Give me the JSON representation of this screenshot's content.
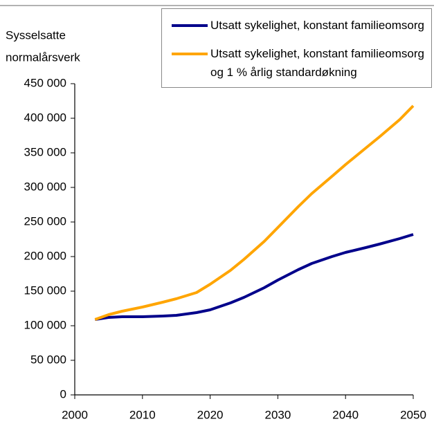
{
  "chart_data": {
    "type": "line",
    "ylabel": [
      "Sysselsatte",
      "normalårsverk"
    ],
    "x": [
      2003,
      2005,
      2007,
      2010,
      2013,
      2015,
      2018,
      2020,
      2023,
      2025,
      2028,
      2030,
      2033,
      2035,
      2038,
      2040,
      2043,
      2045,
      2048,
      2050
    ],
    "series": [
      {
        "name": "Utsatt sykelighet, konstant familieomsorg",
        "color": "#00008b",
        "values": [
          109000,
          112000,
          113000,
          113000,
          114000,
          115000,
          119000,
          123000,
          133000,
          141000,
          155000,
          166000,
          181000,
          190000,
          200000,
          206000,
          213000,
          218000,
          226000,
          232000
        ]
      },
      {
        "name": "Utsatt sykelighet, konstant familieomsorg og 1 % årlig standardøkning",
        "color": "#ffa500",
        "values": [
          109000,
          116000,
          121000,
          127000,
          134000,
          139000,
          148000,
          160000,
          180000,
          196000,
          222000,
          242000,
          272000,
          291000,
          316000,
          333000,
          357000,
          373000,
          398000,
          418000
        ]
      }
    ],
    "xlim": [
      2000,
      2050
    ],
    "xticks": [
      2000,
      2010,
      2020,
      2030,
      2040,
      2050
    ],
    "ylim": [
      0,
      450000
    ],
    "yticks": [
      0,
      {
        "value": 50000,
        "label": "50 000"
      },
      {
        "value": 100000,
        "label": "100 000"
      },
      {
        "value": 150000,
        "label": "150 000"
      },
      {
        "value": 200000,
        "label": "200 000"
      },
      {
        "value": 250000,
        "label": "250 000"
      },
      {
        "value": 300000,
        "label": "300 000"
      },
      {
        "value": 350000,
        "label": "350 000"
      },
      {
        "value": 400000,
        "label": "400 000"
      },
      {
        "value": 450000,
        "label": "450 000"
      }
    ],
    "legend": "top-right"
  }
}
